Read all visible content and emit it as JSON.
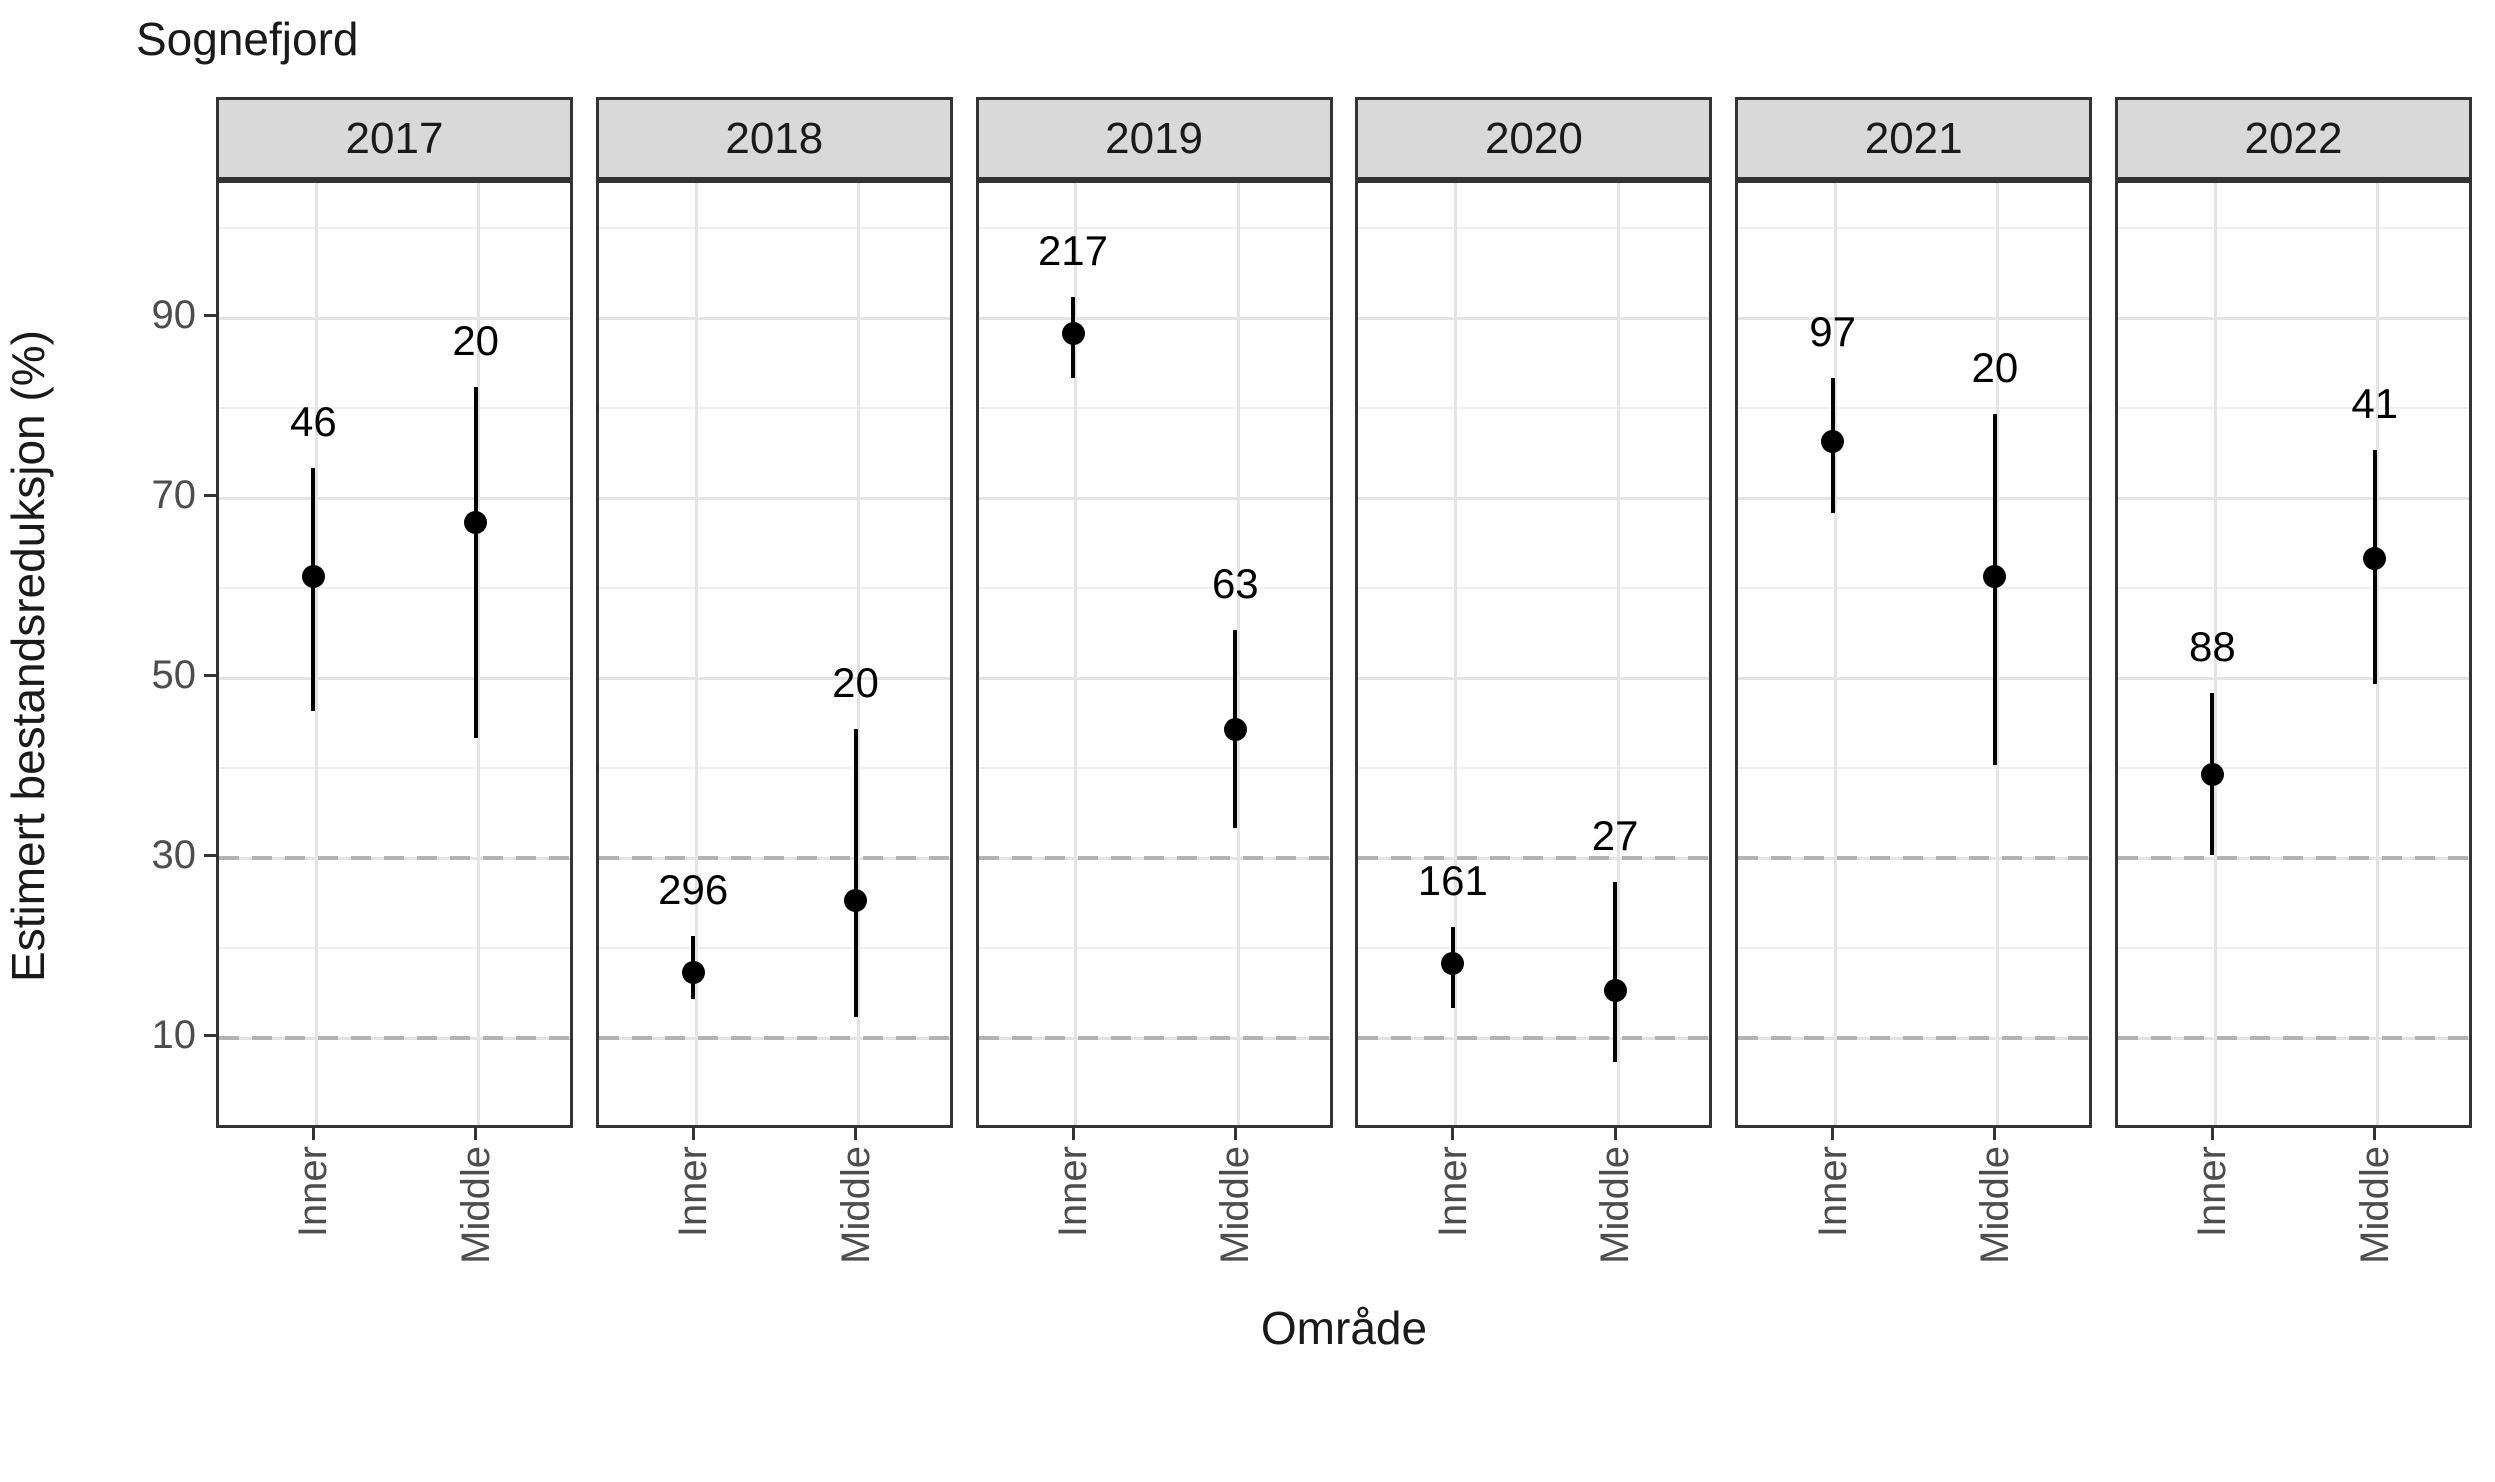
{
  "title": "Sognefjord",
  "x_axis_title": "Område",
  "y_axis_title": "Estimert bestandsreduksjon (%)",
  "colors": {
    "strip_background": "#d9d9d9",
    "panel_border": "#333333",
    "grid_major": "#e4e4e4",
    "grid_minor": "#f0f0f0",
    "reference_line": "#b3b3b3",
    "axis_text": "#4d4d4d",
    "data": "#000000"
  },
  "chart_data": {
    "type": "scatter",
    "subtype": "point-estimates-with-error-bars, faceted by year",
    "facets": [
      "2017",
      "2018",
      "2019",
      "2020",
      "2021",
      "2022"
    ],
    "categories": [
      "Inner",
      "Middle"
    ],
    "xlabel": "Område",
    "ylabel": "Estimert bestandsreduksjon (%)",
    "y_breaks": [
      90,
      70,
      50,
      30,
      10
    ],
    "y_minor_breaks": [
      100,
      80,
      60,
      40,
      20,
      0
    ],
    "dashed_reference_lines": [
      30,
      10
    ],
    "ylim": [
      -0.3,
      105.3
    ],
    "grid": true,
    "legend": "none",
    "series": [
      {
        "facet": "2017",
        "area": "Inner",
        "estimate": 61,
        "lower": 46,
        "upper": 73,
        "n": "46"
      },
      {
        "facet": "2017",
        "area": "Middle",
        "estimate": 67,
        "lower": 43,
        "upper": 82,
        "n": "20"
      },
      {
        "facet": "2018",
        "area": "Inner",
        "estimate": 17,
        "lower": 14,
        "upper": 21,
        "n": "296"
      },
      {
        "facet": "2018",
        "area": "Middle",
        "estimate": 25,
        "lower": 12,
        "upper": 44,
        "n": "20"
      },
      {
        "facet": "2019",
        "area": "Inner",
        "estimate": 88,
        "lower": 83,
        "upper": 92,
        "n": "217"
      },
      {
        "facet": "2019",
        "area": "Middle",
        "estimate": 44,
        "lower": 33,
        "upper": 55,
        "n": "63"
      },
      {
        "facet": "2020",
        "area": "Inner",
        "estimate": 18,
        "lower": 13,
        "upper": 22,
        "n": "161"
      },
      {
        "facet": "2020",
        "area": "Middle",
        "estimate": 15,
        "lower": 7,
        "upper": 27,
        "n": "27"
      },
      {
        "facet": "2021",
        "area": "Inner",
        "estimate": 76,
        "lower": 68,
        "upper": 83,
        "n": "97"
      },
      {
        "facet": "2021",
        "area": "Middle",
        "estimate": 61,
        "lower": 40,
        "upper": 79,
        "n": "20"
      },
      {
        "facet": "2022",
        "area": "Inner",
        "estimate": 39,
        "lower": 30,
        "upper": 48,
        "n": "88"
      },
      {
        "facet": "2022",
        "area": "Middle",
        "estimate": 63,
        "lower": 49,
        "upper": 75,
        "n": "41"
      }
    ]
  }
}
